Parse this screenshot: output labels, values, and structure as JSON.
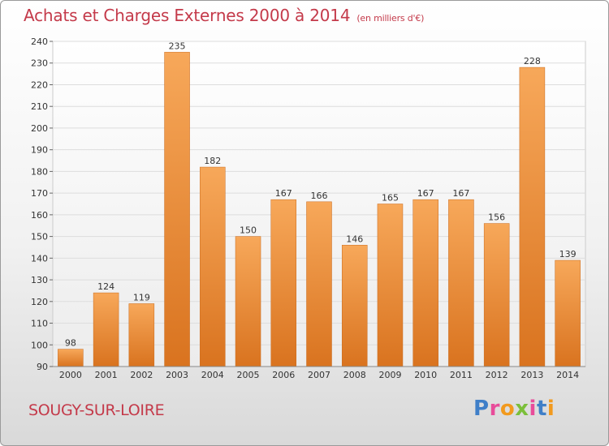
{
  "header": {
    "title": "Achats et Charges Externes 2000 à 2014",
    "subtitle": "(en milliers d'€)"
  },
  "footer": {
    "city": "SOUGY-SUR-LOIRE",
    "logo": "Proxiti"
  },
  "colors": {
    "title": "#c43a4a",
    "bar_top": "#f7a85a",
    "bar_bottom": "#d9731f",
    "grid": "#dddddd",
    "logo_letters": [
      "#3f7fc8",
      "#e84c9a",
      "#f29a1e",
      "#7bbf3a",
      "#e84c9a",
      "#3f7fc8",
      "#f29a1e"
    ]
  },
  "chart_data": {
    "type": "bar",
    "title": "Achats et Charges Externes 2000 à 2014",
    "subtitle": "(en milliers d'€)",
    "categories": [
      "2000",
      "2001",
      "2002",
      "2003",
      "2004",
      "2005",
      "2006",
      "2007",
      "2008",
      "2009",
      "2010",
      "2011",
      "2012",
      "2013",
      "2014"
    ],
    "values": [
      98,
      124,
      119,
      235,
      182,
      150,
      167,
      166,
      146,
      165,
      167,
      167,
      156,
      228,
      139
    ],
    "ylim": [
      90,
      240
    ],
    "yticks": [
      90,
      100,
      110,
      120,
      130,
      140,
      150,
      160,
      170,
      180,
      190,
      200,
      210,
      220,
      230,
      240
    ],
    "grid": true,
    "xlabel": "",
    "ylabel": ""
  }
}
